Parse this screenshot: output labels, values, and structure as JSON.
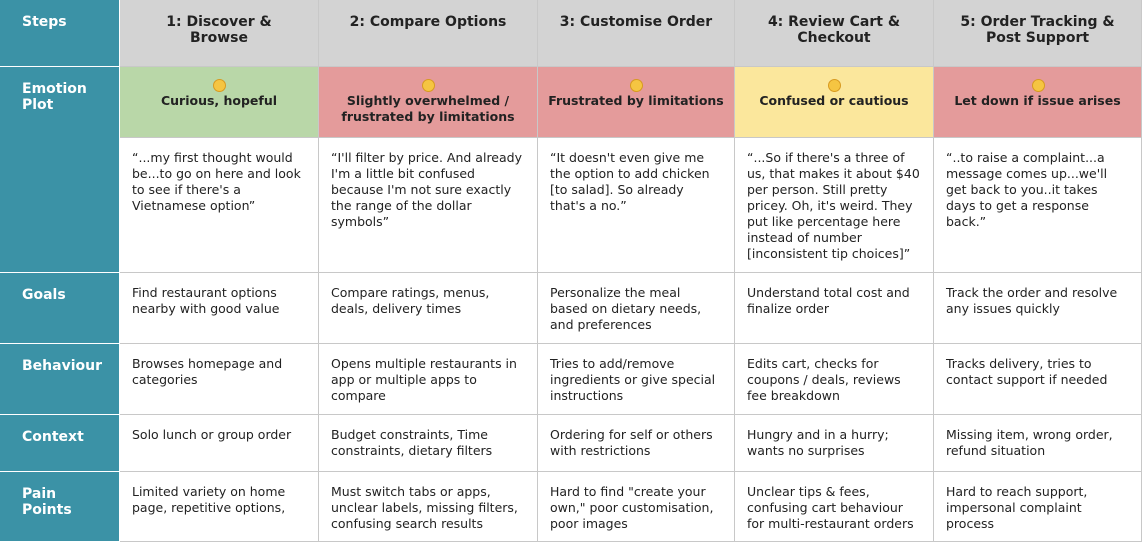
{
  "header": {
    "steps_label": "Steps",
    "steps": [
      "1: Discover & Browse",
      "2: Compare Options",
      "3: Customise Order",
      "4: Review Cart & Checkout",
      "5: Order Tracking & Post Support"
    ]
  },
  "emotion": {
    "label": "Emotion Plot",
    "cells": [
      "Curious, hopeful",
      "Slightly overwhelmed / frustrated by limitations",
      "Frustrated by limitations",
      "Confused or cautious",
      "Let down if issue arises"
    ],
    "quotes": [
      "“...my first thought would be...to go on here and look to see if there's a Vietnamese option”",
      "“I'll filter by price. And already I'm a little bit confused because I'm not sure exactly the range of the dollar symbols”",
      "“It doesn't even give me the option to add chicken [to salad]. So already that's a no.”",
      "“...So if there's a three of us, that makes it about $40 per person. Still pretty pricey. Oh, it's weird. They put like percentage here instead of number [inconsistent tip choices]”",
      "“..to raise a complaint...a message comes up...we'll get back to you..it takes days to get a response back.”"
    ]
  },
  "rows": [
    {
      "label": "Goals",
      "cells": [
        "Find restaurant options nearby with good value",
        "Compare ratings, menus, deals, delivery times",
        "Personalize the meal based on dietary needs,  and preferences",
        "Understand total cost and finalize order",
        "Track the order and resolve any issues quickly"
      ]
    },
    {
      "label": "Behaviour",
      "cells": [
        "Browses homepage and categories",
        "Opens multiple restaurants in app or multiple apps to compare",
        "Tries to add/remove ingredients or give special instructions",
        "Edits cart, checks for coupons / deals, reviews fee breakdown",
        "Tracks delivery, tries to contact support if needed"
      ]
    },
    {
      "label": "Context",
      "cells": [
        "Solo lunch or group order",
        "Budget constraints, Time constraints, dietary filters",
        "Ordering for self or others with restrictions",
        "Hungry and in a hurry; wants no surprises",
        "Missing item, wrong order, refund situation"
      ]
    },
    {
      "label": "Pain Points",
      "cells": [
        "Limited variety on home page, repetitive options,",
        "Must switch tabs or apps, unclear labels, missing filters, confusing search results",
        "Hard to find \"create your own,\" poor customisation, poor images",
        "Unclear tips & fees, confusing cart behaviour for multi-restaurant orders",
        "Hard to reach support, impersonal complaint process"
      ]
    }
  ]
}
